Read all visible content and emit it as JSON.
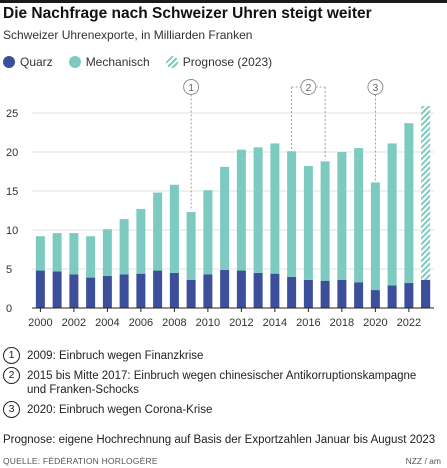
{
  "header": {
    "title": "Die Nachfrage nach Schweizer Uhren steigt weiter",
    "subtitle": "Schweizer Uhrenexporte, in Milliarden Franken"
  },
  "legend": [
    {
      "label": "Quarz",
      "color": "#3d4f9a"
    },
    {
      "label": "Mechanisch",
      "color": "#7dcbc0"
    },
    {
      "label": "Prognose (2023)",
      "color": "#7dcbc0",
      "hatched": true
    }
  ],
  "notes": [
    {
      "num": "1",
      "text": "2009: Einbruch wegen Finanzkrise"
    },
    {
      "num": "2",
      "text": "2015 bis Mitte 2017: Einbruch wegen chinesischer Antikorruptionskampagne und Franken-Schocks"
    },
    {
      "num": "3",
      "text": "2020: Einbruch wegen Corona-Krise"
    }
  ],
  "prognose_note": "Prognose: eigene Hochrechnung auf Basis der Exportzahlen Januar bis August 2023",
  "source": "QUELLE: FÉDÉRATION HORLOGÈRE",
  "credit": "NZZ / am",
  "chart_data": {
    "type": "bar",
    "stacked": true,
    "title": "Die Nachfrage nach Schweizer Uhren steigt weiter",
    "subtitle": "Schweizer Uhrenexporte, in Milliarden Franken",
    "xlabel": "",
    "ylabel": "",
    "ylim": [
      0,
      27
    ],
    "yticks": [
      0,
      5,
      10,
      15,
      20,
      25
    ],
    "xtick_labels": [
      "2000",
      "2002",
      "2004",
      "2006",
      "2008",
      "2010",
      "2012",
      "2014",
      "2016",
      "2018",
      "2020",
      "2022"
    ],
    "categories": [
      2000,
      2001,
      2002,
      2003,
      2004,
      2005,
      2006,
      2007,
      2008,
      2009,
      2010,
      2011,
      2012,
      2013,
      2014,
      2015,
      2016,
      2017,
      2018,
      2019,
      2020,
      2021,
      2022,
      2023
    ],
    "series": [
      {
        "name": "Quarz",
        "color": "#3d4f9a",
        "values": [
          4.8,
          4.7,
          4.3,
          3.9,
          4.1,
          4.3,
          4.4,
          4.8,
          4.5,
          3.6,
          4.3,
          4.9,
          4.8,
          4.5,
          4.4,
          4.0,
          3.6,
          3.5,
          3.6,
          3.3,
          2.3,
          2.9,
          3.2,
          3.6
        ]
      },
      {
        "name": "Mechanisch",
        "color": "#7dcbc0",
        "values": [
          4.4,
          4.9,
          5.3,
          5.3,
          6.0,
          7.1,
          8.3,
          10.0,
          11.3,
          8.7,
          10.8,
          13.2,
          15.5,
          16.1,
          16.7,
          16.1,
          14.6,
          15.3,
          16.4,
          17.2,
          13.8,
          18.2,
          20.5,
          22.3
        ]
      }
    ],
    "forecast_categories": [
      2023
    ],
    "grid": "horizontal",
    "legend_position": "top-left",
    "annotations": [
      {
        "num": "1",
        "years": [
          2009
        ]
      },
      {
        "num": "2",
        "years": [
          2015,
          2017
        ]
      },
      {
        "num": "3",
        "years": [
          2020
        ]
      }
    ]
  }
}
